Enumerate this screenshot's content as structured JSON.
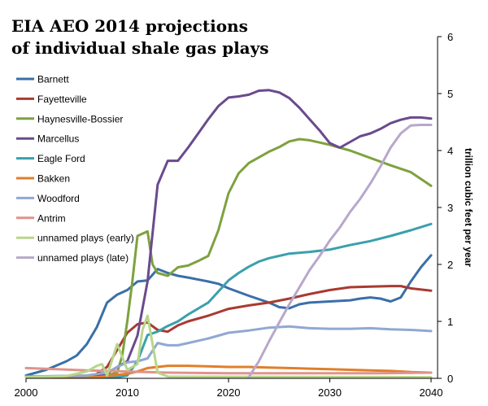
{
  "chart_data": {
    "type": "line",
    "title_lines": [
      "EIA AEO 2014 projections",
      "of individual shale gas plays"
    ],
    "xlabel": "",
    "ylabel": "trillion cubic feet per year",
    "xlim": [
      2000,
      2040
    ],
    "ylim": [
      0,
      6
    ],
    "x_ticks": [
      "2000",
      "2010",
      "2020",
      "2030",
      "2040"
    ],
    "y_ticks": [
      "0",
      "1",
      "2",
      "3",
      "4",
      "5",
      "6"
    ],
    "y_axis_side": "right",
    "grid": false,
    "legend_position": "left",
    "series": [
      {
        "name": "Barnett",
        "color": "#3a6fa8",
        "points": [
          [
            2000,
            0.05
          ],
          [
            2002,
            0.15
          ],
          [
            2004,
            0.3
          ],
          [
            2005,
            0.4
          ],
          [
            2006,
            0.6
          ],
          [
            2007,
            0.9
          ],
          [
            2008,
            1.33
          ],
          [
            2009,
            1.47
          ],
          [
            2010,
            1.55
          ],
          [
            2011,
            1.7
          ],
          [
            2012,
            1.72
          ],
          [
            2013,
            1.92
          ],
          [
            2014,
            1.85
          ],
          [
            2015,
            1.8
          ],
          [
            2016,
            1.77
          ],
          [
            2018,
            1.7
          ],
          [
            2019,
            1.66
          ],
          [
            2020,
            1.58
          ],
          [
            2022,
            1.45
          ],
          [
            2024,
            1.33
          ],
          [
            2025,
            1.25
          ],
          [
            2026,
            1.23
          ],
          [
            2027,
            1.3
          ],
          [
            2028,
            1.33
          ],
          [
            2030,
            1.35
          ],
          [
            2032,
            1.37
          ],
          [
            2033,
            1.4
          ],
          [
            2034,
            1.42
          ],
          [
            2035,
            1.4
          ],
          [
            2036,
            1.35
          ],
          [
            2037,
            1.42
          ],
          [
            2038,
            1.7
          ],
          [
            2039,
            1.95
          ],
          [
            2040,
            2.16
          ]
        ]
      },
      {
        "name": "Fayetteville",
        "color": "#a83a32",
        "points": [
          [
            2007,
            0.08
          ],
          [
            2008,
            0.2
          ],
          [
            2009,
            0.5
          ],
          [
            2010,
            0.8
          ],
          [
            2011,
            0.95
          ],
          [
            2012,
            0.98
          ],
          [
            2013,
            0.85
          ],
          [
            2014,
            0.82
          ],
          [
            2015,
            0.93
          ],
          [
            2016,
            1.0
          ],
          [
            2018,
            1.1
          ],
          [
            2020,
            1.22
          ],
          [
            2022,
            1.28
          ],
          [
            2024,
            1.33
          ],
          [
            2026,
            1.4
          ],
          [
            2028,
            1.48
          ],
          [
            2030,
            1.55
          ],
          [
            2032,
            1.6
          ],
          [
            2034,
            1.61
          ],
          [
            2036,
            1.62
          ],
          [
            2037,
            1.62
          ],
          [
            2038,
            1.58
          ],
          [
            2040,
            1.54
          ]
        ]
      },
      {
        "name": "Haynesville-Bossier",
        "color": "#7ea13f",
        "points": [
          [
            2000,
            0.03
          ],
          [
            2008,
            0.05
          ],
          [
            2009,
            0.1
          ],
          [
            2009.5,
            0.4
          ],
          [
            2010,
            1.0
          ],
          [
            2010.5,
            1.7
          ],
          [
            2011,
            2.5
          ],
          [
            2012,
            2.58
          ],
          [
            2012.5,
            2.0
          ],
          [
            2013,
            1.85
          ],
          [
            2014,
            1.8
          ],
          [
            2015,
            1.95
          ],
          [
            2016,
            1.98
          ],
          [
            2017,
            2.06
          ],
          [
            2018,
            2.15
          ],
          [
            2019,
            2.6
          ],
          [
            2020,
            3.25
          ],
          [
            2021,
            3.6
          ],
          [
            2022,
            3.78
          ],
          [
            2023,
            3.88
          ],
          [
            2024,
            3.98
          ],
          [
            2025,
            4.06
          ],
          [
            2026,
            4.16
          ],
          [
            2027,
            4.2
          ],
          [
            2028,
            4.18
          ],
          [
            2029,
            4.14
          ],
          [
            2030,
            4.1
          ],
          [
            2031,
            4.05
          ],
          [
            2032,
            4.0
          ],
          [
            2034,
            3.87
          ],
          [
            2036,
            3.74
          ],
          [
            2038,
            3.62
          ],
          [
            2040,
            3.38
          ]
        ]
      },
      {
        "name": "Marcellus",
        "color": "#6a4a8e",
        "points": [
          [
            2000,
            0.03
          ],
          [
            2007,
            0.03
          ],
          [
            2008,
            0.08
          ],
          [
            2009,
            0.2
          ],
          [
            2010,
            0.3
          ],
          [
            2011,
            0.75
          ],
          [
            2012,
            1.7
          ],
          [
            2013,
            3.4
          ],
          [
            2014,
            3.82
          ],
          [
            2015,
            3.82
          ],
          [
            2016,
            4.05
          ],
          [
            2017,
            4.3
          ],
          [
            2018,
            4.55
          ],
          [
            2019,
            4.78
          ],
          [
            2020,
            4.93
          ],
          [
            2021,
            4.95
          ],
          [
            2022,
            4.98
          ],
          [
            2023,
            5.05
          ],
          [
            2024,
            5.06
          ],
          [
            2025,
            5.02
          ],
          [
            2026,
            4.92
          ],
          [
            2027,
            4.75
          ],
          [
            2028,
            4.55
          ],
          [
            2029,
            4.35
          ],
          [
            2030,
            4.13
          ],
          [
            2031,
            4.05
          ],
          [
            2032,
            4.15
          ],
          [
            2033,
            4.25
          ],
          [
            2034,
            4.3
          ],
          [
            2035,
            4.38
          ],
          [
            2036,
            4.48
          ],
          [
            2037,
            4.54
          ],
          [
            2038,
            4.58
          ],
          [
            2039,
            4.58
          ],
          [
            2040,
            4.56
          ]
        ]
      },
      {
        "name": "Eagle Ford",
        "color": "#3aa0ad",
        "points": [
          [
            2000,
            0.02
          ],
          [
            2009,
            0.02
          ],
          [
            2010,
            0.05
          ],
          [
            2011,
            0.3
          ],
          [
            2012,
            0.76
          ],
          [
            2013,
            0.82
          ],
          [
            2014,
            0.92
          ],
          [
            2015,
            1.0
          ],
          [
            2016,
            1.12
          ],
          [
            2018,
            1.33
          ],
          [
            2020,
            1.72
          ],
          [
            2021,
            1.85
          ],
          [
            2022,
            1.96
          ],
          [
            2023,
            2.05
          ],
          [
            2024,
            2.11
          ],
          [
            2025,
            2.15
          ],
          [
            2026,
            2.19
          ],
          [
            2028,
            2.22
          ],
          [
            2030,
            2.26
          ],
          [
            2032,
            2.34
          ],
          [
            2034,
            2.41
          ],
          [
            2036,
            2.5
          ],
          [
            2038,
            2.6
          ],
          [
            2040,
            2.71
          ]
        ]
      },
      {
        "name": "Bakken",
        "color": "#e07f2a",
        "points": [
          [
            2000,
            0.02
          ],
          [
            2007,
            0.02
          ],
          [
            2008,
            0.04
          ],
          [
            2010,
            0.08
          ],
          [
            2011,
            0.12
          ],
          [
            2012,
            0.18
          ],
          [
            2014,
            0.22
          ],
          [
            2016,
            0.22
          ],
          [
            2018,
            0.21
          ],
          [
            2020,
            0.2
          ],
          [
            2022,
            0.2
          ],
          [
            2024,
            0.19
          ],
          [
            2026,
            0.18
          ],
          [
            2028,
            0.17
          ],
          [
            2030,
            0.16
          ],
          [
            2034,
            0.14
          ],
          [
            2036,
            0.13
          ],
          [
            2038,
            0.11
          ],
          [
            2040,
            0.1
          ]
        ]
      },
      {
        "name": "Woodford",
        "color": "#8fa9d2",
        "points": [
          [
            2000,
            0.03
          ],
          [
            2006,
            0.05
          ],
          [
            2008,
            0.1
          ],
          [
            2009,
            0.2
          ],
          [
            2010,
            0.28
          ],
          [
            2011,
            0.3
          ],
          [
            2012,
            0.35
          ],
          [
            2013,
            0.62
          ],
          [
            2014,
            0.58
          ],
          [
            2015,
            0.58
          ],
          [
            2016,
            0.62
          ],
          [
            2018,
            0.7
          ],
          [
            2020,
            0.8
          ],
          [
            2022,
            0.84
          ],
          [
            2024,
            0.89
          ],
          [
            2026,
            0.91
          ],
          [
            2028,
            0.88
          ],
          [
            2030,
            0.87
          ],
          [
            2032,
            0.87
          ],
          [
            2034,
            0.88
          ],
          [
            2036,
            0.86
          ],
          [
            2038,
            0.85
          ],
          [
            2040,
            0.83
          ]
        ]
      },
      {
        "name": "Antrim",
        "color": "#e0938c",
        "points": [
          [
            2000,
            0.18
          ],
          [
            2003,
            0.16
          ],
          [
            2006,
            0.14
          ],
          [
            2008,
            0.13
          ],
          [
            2010,
            0.12
          ],
          [
            2014,
            0.1
          ],
          [
            2020,
            0.09
          ],
          [
            2025,
            0.09
          ],
          [
            2030,
            0.09
          ],
          [
            2035,
            0.09
          ],
          [
            2040,
            0.1
          ]
        ]
      },
      {
        "name": "unnamed plays (early)",
        "color": "#b8d68a",
        "points": [
          [
            2000,
            0.02
          ],
          [
            2004,
            0.04
          ],
          [
            2006,
            0.12
          ],
          [
            2007,
            0.22
          ],
          [
            2007.5,
            0.25
          ],
          [
            2008,
            0.05
          ],
          [
            2009,
            0.6
          ],
          [
            2010,
            0.15
          ],
          [
            2011,
            0.25
          ],
          [
            2011.5,
            0.85
          ],
          [
            2012,
            1.1
          ],
          [
            2012.5,
            0.6
          ],
          [
            2013,
            0.1
          ],
          [
            2014,
            0.03
          ],
          [
            2040,
            0.02
          ]
        ]
      },
      {
        "name": "unnamed plays (late)",
        "color": "#b7a8cb",
        "points": [
          [
            2022,
            0.02
          ],
          [
            2023,
            0.3
          ],
          [
            2024,
            0.65
          ],
          [
            2025,
            0.98
          ],
          [
            2026,
            1.3
          ],
          [
            2027,
            1.6
          ],
          [
            2028,
            1.9
          ],
          [
            2029,
            2.15
          ],
          [
            2030,
            2.42
          ],
          [
            2031,
            2.65
          ],
          [
            2032,
            2.92
          ],
          [
            2033,
            3.15
          ],
          [
            2034,
            3.42
          ],
          [
            2035,
            3.72
          ],
          [
            2036,
            4.05
          ],
          [
            2037,
            4.3
          ],
          [
            2038,
            4.44
          ],
          [
            2039,
            4.45
          ],
          [
            2040,
            4.45
          ]
        ]
      }
    ]
  }
}
